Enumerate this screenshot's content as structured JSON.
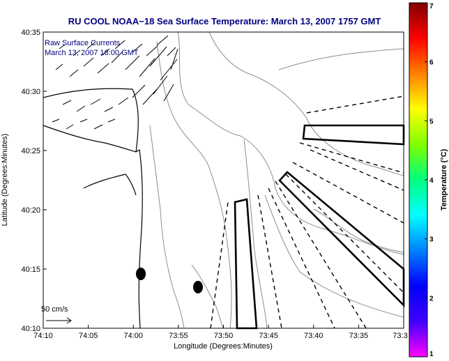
{
  "title": "RU COOL  NOAA−18  Sea Surface Temperature:  March 13, 2007 1757 GMT",
  "annotations": {
    "line1": "Raw Surface Currents",
    "line2": "March 13, 2007 18:00 GMT",
    "scale": "50 cm/s"
  },
  "axes": {
    "xlabel": "Longitude (Degrees:Minutes)",
    "ylabel": "Latitude (Degrees:Minutes)",
    "xticks": [
      "74:10",
      "74:05",
      "74:00",
      "73:55",
      "73:50",
      "73:45",
      "73:40",
      "73:35",
      "73:3"
    ],
    "yticks": [
      "40:35",
      "40:30",
      "40:25",
      "40:20",
      "40:15",
      "40:10"
    ]
  },
  "colorbar": {
    "label": "Temperature (°C)",
    "ticks": [
      "7",
      "6",
      "5",
      "4",
      "3",
      "2",
      "1"
    ],
    "range": [
      1,
      7
    ],
    "colors": [
      "#ff00ff",
      "#4000ff",
      "#0000ff",
      "#0080ff",
      "#00ffff",
      "#00ff80",
      "#80ff00",
      "#ffff00",
      "#ff8000",
      "#ff0000",
      "#800000"
    ]
  },
  "colors": {
    "title": "#000080",
    "contour": "#8c8c8c",
    "land_line": "#000000",
    "frame": "#000000"
  }
}
